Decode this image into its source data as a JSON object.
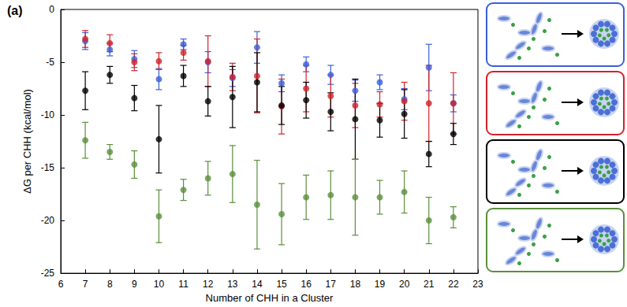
{
  "chart_data": {
    "type": "scatter",
    "title": "(a)",
    "x_label": "Number of CHH in a Cluster",
    "y_label": "ΔG per CHH (kcal/mol)",
    "x": [
      7,
      8,
      9,
      10,
      11,
      12,
      13,
      14,
      15,
      16,
      17,
      18,
      19,
      20,
      21,
      22
    ],
    "series": [
      {
        "color": "#3a5fd9",
        "values": [
          -3.0,
          -3.8,
          -4.7,
          -6.6,
          -3.3,
          -5.0,
          -6.5,
          -3.6,
          -7.0,
          -5.2,
          -6.2,
          -7.7,
          -6.9,
          -8.5,
          -5.5,
          -8.9
        ],
        "errors": [
          0.8,
          0.6,
          0.8,
          1.0,
          0.5,
          1.0,
          0.8,
          1.5,
          0.8,
          0.7,
          0.9,
          1.0,
          0.7,
          1.0,
          2.2,
          0.8
        ]
      },
      {
        "color": "#d2222b",
        "values": [
          -2.8,
          -3.2,
          -5.0,
          -4.9,
          -4.1,
          -4.9,
          -6.4,
          -6.3,
          -9.2,
          -7.5,
          -8.2,
          -9.1,
          -9.0,
          -8.7,
          -8.9,
          -8.9
        ],
        "errors": [
          0.8,
          0.8,
          0.8,
          0.8,
          0.7,
          2.4,
          1.3,
          3.5,
          2.6,
          2.2,
          2.0,
          2.1,
          1.2,
          1.8,
          3.6,
          2.9
        ]
      },
      {
        "color": "#000000",
        "values": [
          -7.7,
          -6.2,
          -8.4,
          -12.3,
          -6.3,
          -8.7,
          -8.3,
          -6.9,
          -9.1,
          -8.6,
          -9.7,
          -10.4,
          -10.5,
          -9.9,
          -13.7,
          -11.8
        ],
        "errors": [
          1.8,
          0.8,
          1.2,
          3.2,
          1.0,
          1.4,
          2.9,
          2.8,
          1.8,
          1.7,
          1.8,
          3.8,
          1.6,
          2.3,
          1.2,
          1.0
        ]
      },
      {
        "color": "#5a8f3c",
        "values": [
          -12.4,
          -13.5,
          -14.7,
          -19.6,
          -17.1,
          -16.0,
          -15.6,
          -18.5,
          -19.4,
          -17.8,
          -17.6,
          -17.8,
          -17.8,
          -17.3,
          -20.0,
          -19.7
        ],
        "errors": [
          1.7,
          0.7,
          1.3,
          2.5,
          1.0,
          1.6,
          2.7,
          4.2,
          2.9,
          2.1,
          2.3,
          3.6,
          1.6,
          2.0,
          2.2,
          1.0
        ]
      }
    ],
    "xlim": [
      6,
      23
    ],
    "xticks": [
      6,
      7,
      8,
      9,
      10,
      11,
      12,
      13,
      14,
      15,
      16,
      17,
      18,
      19,
      20,
      21,
      22,
      23
    ],
    "ylim": [
      -25,
      0
    ],
    "yticks": [
      -25,
      -20,
      -15,
      -10,
      -5,
      0
    ],
    "grid": false,
    "marker": "circle"
  }
}
